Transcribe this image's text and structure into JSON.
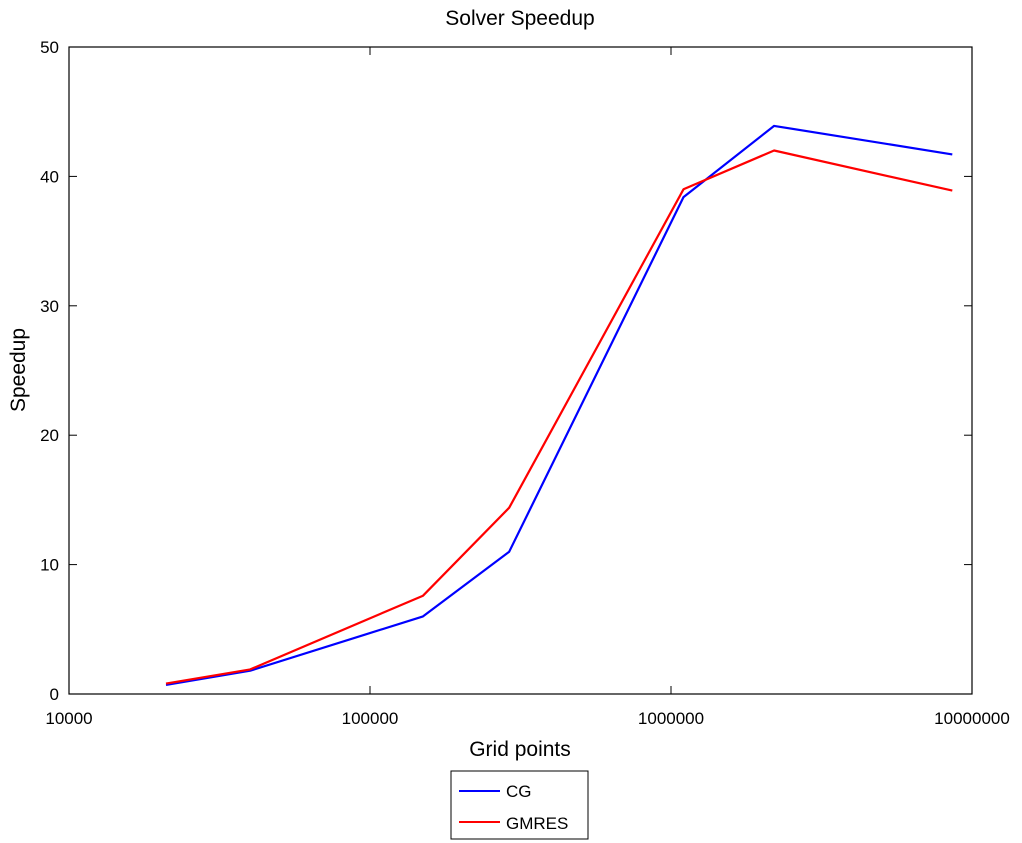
{
  "chart_data": {
    "type": "line",
    "title": "Solver Speedup",
    "xlabel": "Grid points",
    "ylabel": "Speedup",
    "xscale": "log",
    "xlim": [
      10000,
      10000000
    ],
    "ylim": [
      0,
      50
    ],
    "xticks": [
      10000,
      100000,
      1000000,
      10000000
    ],
    "xtick_labels": [
      "10000",
      "100000",
      "1000000",
      "10000000"
    ],
    "yticks": [
      0,
      10,
      20,
      30,
      40,
      50
    ],
    "ytick_labels": [
      "0",
      "10",
      "20",
      "30",
      "40",
      "50"
    ],
    "grid": false,
    "legend_position": "bottom-center, outside",
    "series": [
      {
        "name": "CG",
        "color": "#0000ff",
        "x": [
          21000,
          40000,
          150000,
          290000,
          1100000,
          2200000,
          8600000
        ],
        "y": [
          0.7,
          1.8,
          6.0,
          11.0,
          38.4,
          43.9,
          41.7
        ]
      },
      {
        "name": "GMRES",
        "color": "#ff0000",
        "x": [
          21000,
          40000,
          150000,
          290000,
          1100000,
          2200000,
          8600000
        ],
        "y": [
          0.8,
          1.9,
          7.6,
          14.4,
          39.0,
          42.0,
          38.9
        ]
      }
    ]
  }
}
